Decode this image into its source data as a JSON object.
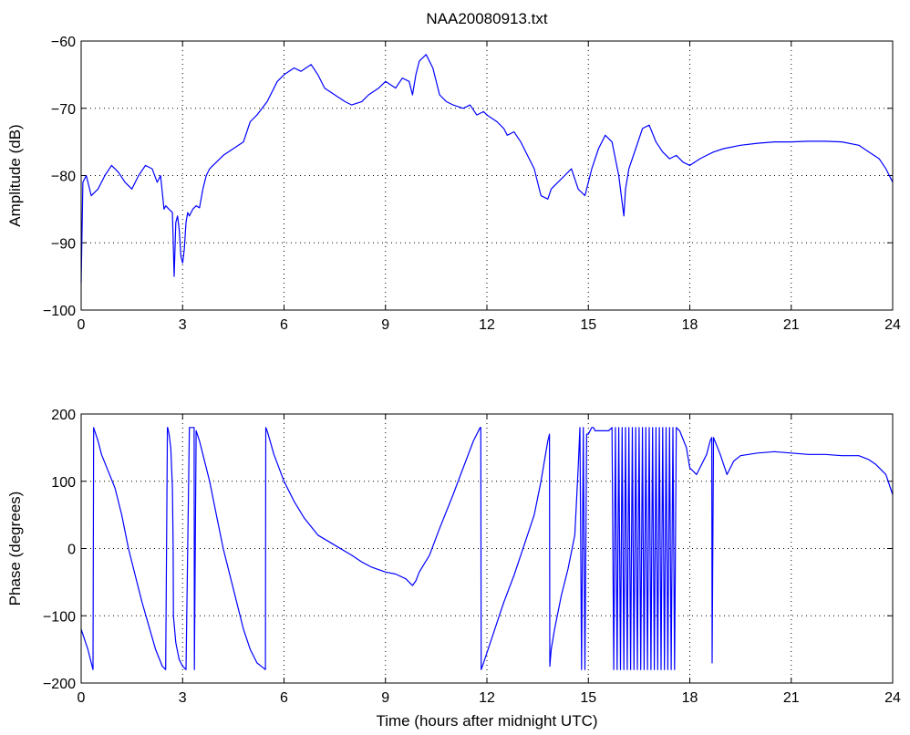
{
  "figure_title": "NAA20080913.txt",
  "chart_data": [
    {
      "type": "line",
      "title": "NAA20080913.txt",
      "xlabel": "",
      "ylabel": "Amplitude (dB)",
      "xlim": [
        0,
        24
      ],
      "ylim": [
        -100,
        -60
      ],
      "xticks": [
        "0",
        "3",
        "6",
        "9",
        "12",
        "15",
        "18",
        "21",
        "24"
      ],
      "yticks": [
        "-100",
        "-90",
        "-80",
        "-70",
        "-60"
      ],
      "grid": true,
      "color": "#0000ff",
      "series": [
        {
          "x": [
            0,
            0.05,
            0.15,
            0.3,
            0.5,
            0.7,
            0.9,
            1.1,
            1.3,
            1.5,
            1.7,
            1.9,
            2.1,
            2.25,
            2.35,
            2.45,
            2.5,
            2.6,
            2.7,
            2.75,
            2.8,
            2.85,
            2.9,
            2.95,
            3.0,
            3.05,
            3.1,
            3.15,
            3.2,
            3.3,
            3.4,
            3.5,
            3.6,
            3.7,
            3.8,
            4.0,
            4.2,
            4.5,
            4.8,
            5.0,
            5.2,
            5.5,
            5.8,
            6.0,
            6.3,
            6.5,
            6.8,
            7.0,
            7.2,
            7.5,
            7.8,
            8.0,
            8.3,
            8.5,
            8.8,
            9.0,
            9.3,
            9.5,
            9.7,
            9.8,
            9.9,
            10.0,
            10.2,
            10.4,
            10.6,
            10.8,
            11.0,
            11.3,
            11.5,
            11.7,
            11.9,
            12.0,
            12.3,
            12.5,
            12.6,
            12.8,
            13.0,
            13.2,
            13.4,
            13.6,
            13.8,
            13.9,
            14.0,
            14.3,
            14.5,
            14.7,
            14.9,
            15.1,
            15.3,
            15.5,
            15.7,
            15.9,
            16.0,
            16.05,
            16.1,
            16.2,
            16.4,
            16.6,
            16.8,
            17.0,
            17.2,
            17.4,
            17.6,
            17.8,
            18.0,
            18.3,
            18.5,
            18.7,
            19.0,
            19.5,
            20.0,
            20.5,
            21.0,
            21.5,
            22.0,
            22.5,
            23.0,
            23.3,
            23.6,
            23.8,
            24.0
          ],
          "values": [
            -96,
            -81,
            -80,
            -83,
            -82,
            -80,
            -78.5,
            -79.5,
            -81,
            -82,
            -80,
            -78.5,
            -79,
            -81,
            -80,
            -85,
            -84.5,
            -85,
            -85.5,
            -95,
            -87,
            -86,
            -88,
            -92,
            -93,
            -91,
            -87,
            -85.5,
            -86,
            -85,
            -84.5,
            -84.8,
            -82,
            -80,
            -79,
            -78,
            -77,
            -76,
            -75,
            -72,
            -71,
            -69,
            -66,
            -65,
            -64,
            -64.5,
            -63.5,
            -65,
            -67,
            -68,
            -69,
            -69.5,
            -69,
            -68,
            -67,
            -66,
            -67,
            -65.5,
            -66,
            -68,
            -65,
            -63,
            -62,
            -64,
            -68,
            -69,
            -69.5,
            -70,
            -69.5,
            -71,
            -70.5,
            -71,
            -72,
            -73,
            -74,
            -73.5,
            -75,
            -77,
            -79,
            -83,
            -83.5,
            -82,
            -81.5,
            -80,
            -79,
            -82,
            -83,
            -79,
            -76,
            -74,
            -75,
            -80,
            -84,
            -86,
            -82,
            -79,
            -76,
            -73,
            -72.5,
            -75,
            -76.5,
            -77.5,
            -77,
            -78,
            -78.5,
            -77.5,
            -77,
            -76.5,
            -76,
            -75.5,
            -75.2,
            -75,
            -75,
            -74.9,
            -74.9,
            -75,
            -75.5,
            -76.5,
            -77.5,
            -79,
            -81
          ]
        }
      ]
    },
    {
      "type": "line",
      "title": "",
      "xlabel": "Time (hours after midnight UTC)",
      "ylabel": "Phase (degrees)",
      "xlim": [
        0,
        24
      ],
      "ylim": [
        -200,
        200
      ],
      "xticks": [
        "0",
        "3",
        "6",
        "9",
        "12",
        "15",
        "18",
        "21",
        "24"
      ],
      "yticks": [
        "-200",
        "-100",
        "0",
        "100",
        "200"
      ],
      "grid": true,
      "color": "#0000ff",
      "series": [
        {
          "x": [
            0,
            0.1,
            0.2,
            0.3,
            0.35,
            0.37,
            0.4,
            0.5,
            0.6,
            0.8,
            1.0,
            1.2,
            1.4,
            1.6,
            1.8,
            2.0,
            2.2,
            2.4,
            2.5,
            2.55,
            2.56,
            2.6,
            2.65,
            2.7,
            2.72,
            2.73,
            2.8,
            2.9,
            3.0,
            3.1,
            3.2,
            3.3,
            3.34,
            3.35,
            3.4,
            3.5,
            3.6,
            3.8,
            4.0,
            4.2,
            4.5,
            4.8,
            5.0,
            5.2,
            5.4,
            5.45,
            5.46,
            5.5,
            5.7,
            6.0,
            6.3,
            6.6,
            7.0,
            7.5,
            8.0,
            8.3,
            8.6,
            9.0,
            9.3,
            9.6,
            9.8,
            9.9,
            10.0,
            10.3,
            10.6,
            11.0,
            11.3,
            11.6,
            11.8,
            11.82,
            11.83,
            11.9,
            12.1,
            12.3,
            12.5,
            12.8,
            13.0,
            13.2,
            13.4,
            13.6,
            13.8,
            13.85,
            13.86,
            13.9,
            14.0,
            14.2,
            14.4,
            14.6,
            14.7,
            14.75,
            14.8,
            14.85,
            14.9,
            14.95,
            15.0,
            15.05,
            15.1,
            15.15,
            15.2,
            15.4,
            15.6,
            15.7,
            15.75,
            15.8,
            15.85,
            15.9,
            15.95,
            16.0,
            16.05,
            16.1,
            16.15,
            16.2,
            16.25,
            16.3,
            16.35,
            16.4,
            16.45,
            16.5,
            16.55,
            16.6,
            16.65,
            16.7,
            16.75,
            16.8,
            16.85,
            16.9,
            16.95,
            17.0,
            17.05,
            17.1,
            17.15,
            17.2,
            17.25,
            17.3,
            17.35,
            17.4,
            17.45,
            17.5,
            17.55,
            17.6,
            17.7,
            17.9,
            18.0,
            18.2,
            18.5,
            18.6,
            18.65,
            18.66,
            18.7,
            18.9,
            19.1,
            19.3,
            19.5,
            20.0,
            20.5,
            21.0,
            21.5,
            22.0,
            22.5,
            23.0,
            23.3,
            23.5,
            23.8,
            24.0
          ],
          "values": [
            -120,
            -135,
            -150,
            -170,
            -180,
            180,
            175,
            160,
            140,
            115,
            90,
            50,
            0,
            -40,
            -80,
            -115,
            -150,
            -175,
            -180,
            180,
            180,
            170,
            150,
            90,
            0,
            -100,
            -140,
            -165,
            -175,
            -180,
            180,
            180,
            180,
            -180,
            175,
            160,
            140,
            100,
            50,
            0,
            -60,
            -120,
            -150,
            -170,
            -178,
            -180,
            180,
            175,
            140,
            100,
            70,
            45,
            20,
            5,
            -10,
            -20,
            -28,
            -35,
            -38,
            -45,
            -55,
            -48,
            -35,
            -10,
            30,
            80,
            120,
            160,
            180,
            180,
            -180,
            -170,
            -140,
            -110,
            -80,
            -40,
            -10,
            20,
            50,
            100,
            160,
            170,
            -175,
            -150,
            -120,
            -70,
            -30,
            20,
            120,
            180,
            -180,
            180,
            -180,
            170,
            170,
            175,
            180,
            180,
            175,
            175,
            175,
            180,
            -180,
            180,
            -180,
            180,
            -180,
            180,
            -180,
            180,
            -180,
            180,
            -180,
            180,
            -180,
            180,
            -180,
            180,
            -180,
            180,
            -180,
            180,
            -180,
            180,
            -180,
            180,
            -180,
            180,
            -180,
            180,
            -180,
            180,
            -180,
            180,
            -180,
            180,
            -180,
            180,
            -180,
            180,
            175,
            150,
            120,
            110,
            140,
            160,
            165,
            -170,
            165,
            140,
            110,
            130,
            138,
            142,
            144,
            142,
            140,
            140,
            138,
            138,
            132,
            125,
            110,
            80
          ]
        }
      ]
    }
  ]
}
